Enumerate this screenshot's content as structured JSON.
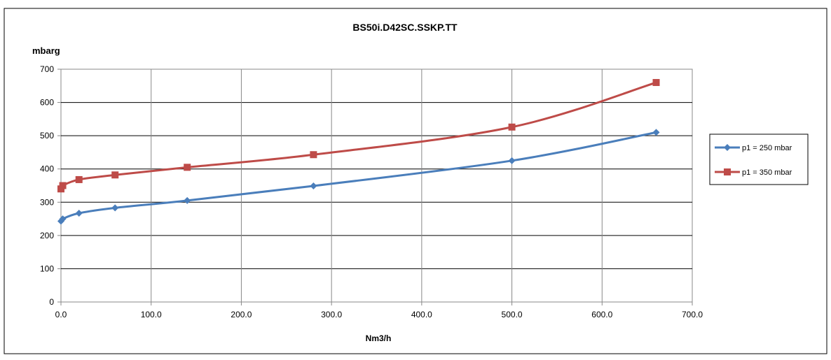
{
  "chart_data": {
    "type": "line",
    "title": "BS50i.D42SC.SSKP.TT",
    "xlabel": "Nm3/h",
    "ylabel": "mbarg",
    "xlim": [
      0,
      700
    ],
    "ylim": [
      0,
      700
    ],
    "x_ticks": [
      "0.0",
      "100.0",
      "200.0",
      "300.0",
      "400.0",
      "500.0",
      "600.0",
      "700.0"
    ],
    "y_ticks": [
      "0",
      "100",
      "200",
      "300",
      "400",
      "500",
      "600",
      "700"
    ],
    "grid": true,
    "legend_position": "right",
    "series": [
      {
        "name": "p1 = 250 mbar",
        "color": "#4a7ebb",
        "marker": "diamond",
        "x": [
          0,
          2,
          20,
          60,
          140,
          280,
          500,
          660
        ],
        "y": [
          243,
          250,
          267,
          283,
          305,
          349,
          425,
          510
        ]
      },
      {
        "name": "p1 = 350 mbar",
        "color": "#be4b48",
        "marker": "square",
        "x": [
          0,
          2,
          20,
          60,
          140,
          280,
          500,
          660
        ],
        "y": [
          340,
          350,
          368,
          382,
          405,
          443,
          526,
          660
        ]
      }
    ]
  }
}
